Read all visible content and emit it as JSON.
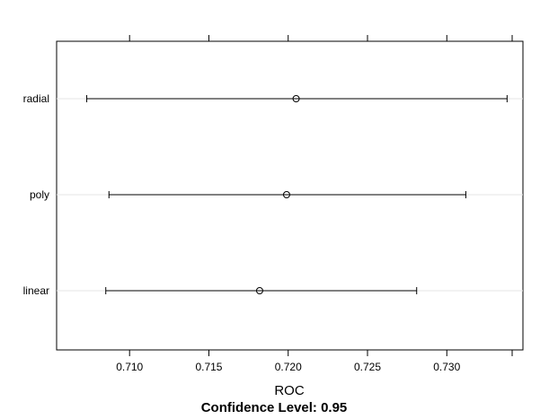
{
  "chart_data": {
    "type": "dotplot",
    "title": "",
    "xlabel": "ROC",
    "subtitle": "Confidence Level: 0.95",
    "ylabel": "",
    "xlim": [
      0.7054,
      0.7348
    ],
    "x_ticks": [
      0.71,
      0.715,
      0.72,
      0.725,
      0.73
    ],
    "x_tick_labels": [
      "0.710",
      "0.715",
      "0.720",
      "0.725",
      "0.730"
    ],
    "categories": [
      "radial",
      "poly",
      "linear"
    ],
    "series": [
      {
        "name": "ROC",
        "points": [
          {
            "label": "radial",
            "estimate": 0.7205,
            "lower": 0.7073,
            "upper": 0.7338
          },
          {
            "label": "poly",
            "estimate": 0.7199,
            "lower": 0.7087,
            "upper": 0.7312
          },
          {
            "label": "linear",
            "estimate": 0.7182,
            "lower": 0.7085,
            "upper": 0.7281
          }
        ]
      }
    ],
    "grid": true,
    "colors": {
      "axis": "#000000",
      "grid": "#e6e6e6",
      "interval": "#000000",
      "point": "#000000"
    }
  }
}
